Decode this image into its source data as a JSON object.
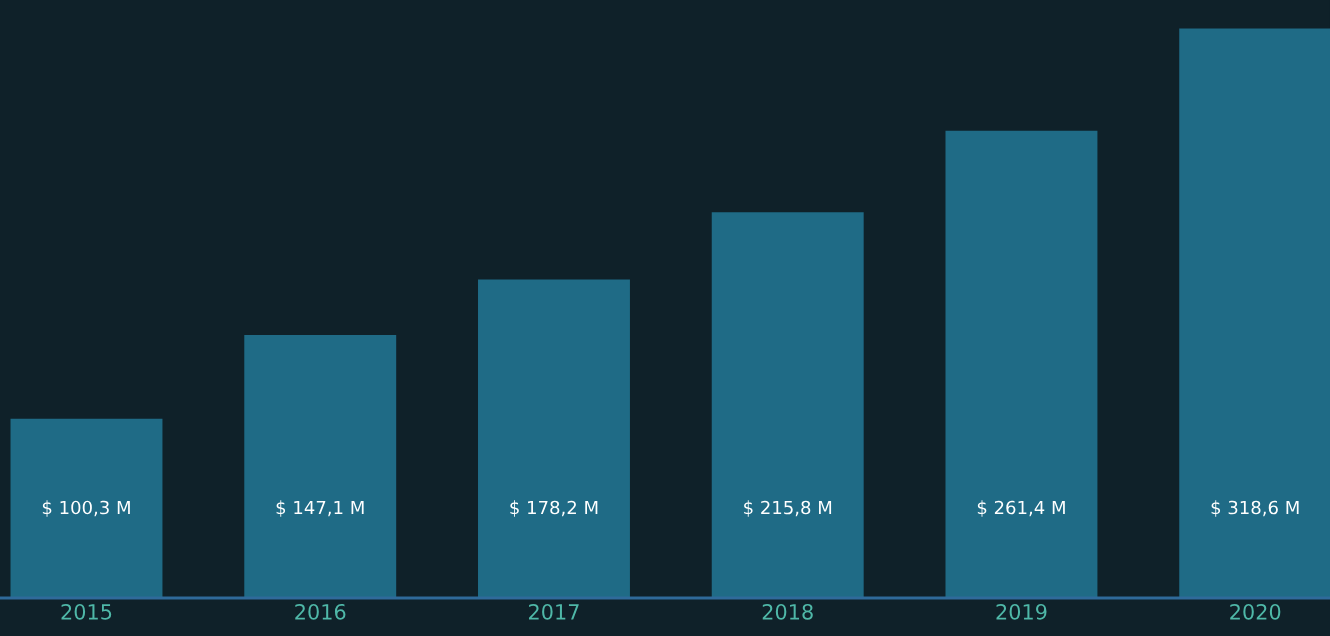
{
  "chart_data": {
    "type": "bar",
    "categories": [
      "2015",
      "2016",
      "2017",
      "2018",
      "2019",
      "2020"
    ],
    "values": [
      100.3,
      147.1,
      178.2,
      215.8,
      261.4,
      318.6
    ],
    "value_labels": [
      "$ 100,3 M",
      "$ 147,1 M",
      "$ 178,2 M",
      "$ 215,8 M",
      "$ 261,4 M",
      "$ 318,6 M"
    ],
    "color": "#1f6b86"
  }
}
